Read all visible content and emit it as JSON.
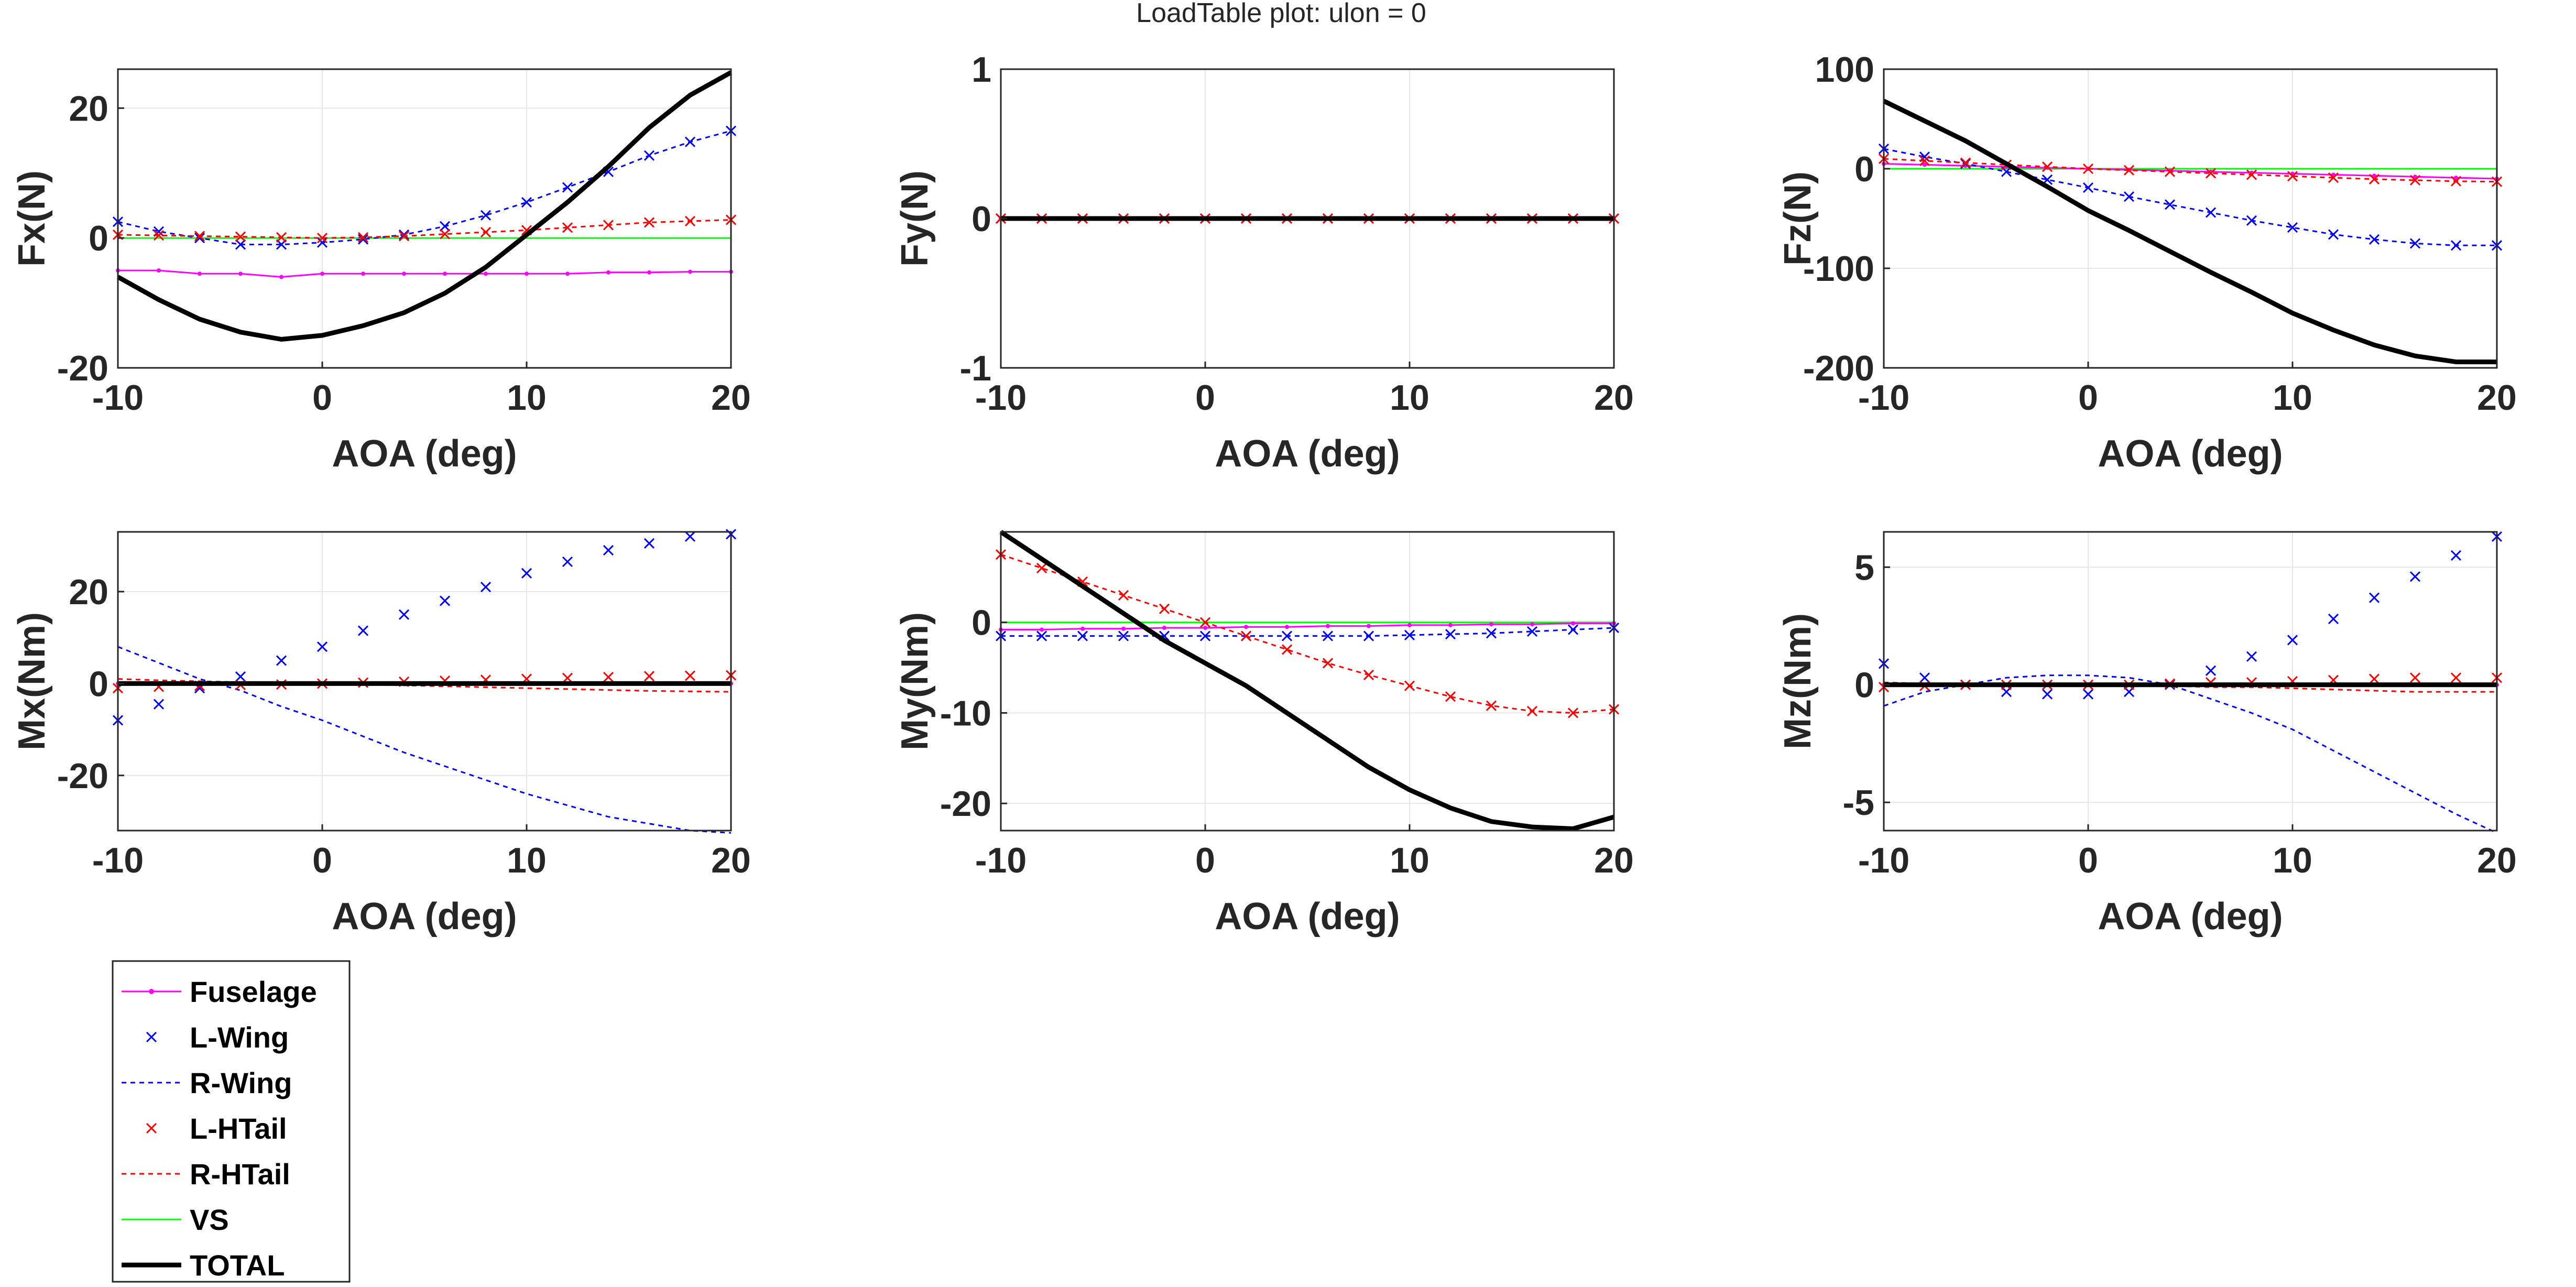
{
  "title": "LoadTable plot: ulon = 0",
  "colors": {
    "Fuselage": "#ff00ff",
    "L-Wing": "#0000ff",
    "R-Wing": "#0000ff",
    "L-HTail": "#ff0000",
    "R-HTail": "#ff0000",
    "VS": "#00ff00",
    "TOTAL": "#000000",
    "axis": "#262626",
    "grid": "#e6e6e6"
  },
  "legend": {
    "placement": "below-left",
    "entries": [
      {
        "name": "Fuselage",
        "style": "line-dot"
      },
      {
        "name": "L-Wing",
        "style": "x-marker"
      },
      {
        "name": "R-Wing",
        "style": "dashed"
      },
      {
        "name": "L-HTail",
        "style": "x-marker"
      },
      {
        "name": "R-HTail",
        "style": "dashed"
      },
      {
        "name": "VS",
        "style": "solid-thin"
      },
      {
        "name": "TOTAL",
        "style": "solid-thick"
      }
    ]
  },
  "chart_data": [
    {
      "type": "line",
      "id": "fx",
      "grid": true,
      "xlabel": "AOA (deg)",
      "ylabel": "Fx(N)",
      "xlim": [
        -10,
        20
      ],
      "ylim": [
        -20,
        26
      ],
      "xticks": [
        -10,
        0,
        10,
        20
      ],
      "yticks": [
        -20,
        0,
        20
      ],
      "x": [
        -10,
        -8,
        -6,
        -4,
        -2,
        0,
        2,
        4,
        6,
        8,
        10,
        12,
        14,
        16,
        18,
        20
      ],
      "series": [
        {
          "name": "Fuselage",
          "values": [
            -5.0,
            -5.0,
            -5.5,
            -5.5,
            -6.0,
            -5.5,
            -5.5,
            -5.5,
            -5.5,
            -5.5,
            -5.5,
            -5.5,
            -5.3,
            -5.3,
            -5.2,
            -5.2
          ]
        },
        {
          "name": "L-Wing",
          "values": [
            2.5,
            1.0,
            0,
            -1.0,
            -1.0,
            -0.7,
            -0.2,
            0.5,
            1.8,
            3.5,
            5.5,
            7.8,
            10.2,
            12.7,
            14.8,
            16.5
          ]
        },
        {
          "name": "R-Wing",
          "values": [
            2.5,
            1.0,
            0,
            -1.0,
            -1.0,
            -0.7,
            -0.2,
            0.5,
            1.8,
            3.5,
            5.5,
            7.8,
            10.2,
            12.7,
            14.8,
            16.5
          ]
        },
        {
          "name": "L-HTail",
          "values": [
            0.5,
            0.4,
            0.3,
            0.2,
            0.1,
            0,
            0.1,
            0.3,
            0.6,
            0.9,
            1.2,
            1.6,
            2.0,
            2.4,
            2.6,
            2.8
          ]
        },
        {
          "name": "R-HTail",
          "values": [
            0.5,
            0.4,
            0.3,
            0.2,
            0.1,
            0,
            0.1,
            0.3,
            0.6,
            0.9,
            1.2,
            1.6,
            2.0,
            2.4,
            2.6,
            2.8
          ]
        },
        {
          "name": "VS",
          "values": [
            0,
            0,
            0,
            0,
            0,
            0,
            0,
            0,
            0,
            0,
            0,
            0,
            0,
            0,
            0,
            0
          ]
        },
        {
          "name": "TOTAL",
          "values": [
            -6.0,
            -9.5,
            -12.5,
            -14.5,
            -15.6,
            -15.0,
            -13.5,
            -11.5,
            -8.5,
            -4.5,
            0.5,
            5.5,
            11.0,
            17.0,
            22.0,
            25.5
          ]
        }
      ]
    },
    {
      "type": "line",
      "id": "fy",
      "grid": true,
      "xlabel": "AOA (deg)",
      "ylabel": "Fy(N)",
      "xlim": [
        -10,
        20
      ],
      "ylim": [
        -1,
        1
      ],
      "xticks": [
        -10,
        0,
        10,
        20
      ],
      "yticks": [
        -1,
        0,
        1
      ],
      "x": [
        -10,
        -8,
        -6,
        -4,
        -2,
        0,
        2,
        4,
        6,
        8,
        10,
        12,
        14,
        16,
        18,
        20
      ],
      "series": [
        {
          "name": "Fuselage",
          "values": [
            0,
            0,
            0,
            0,
            0,
            0,
            0,
            0,
            0,
            0,
            0,
            0,
            0,
            0,
            0,
            0
          ]
        },
        {
          "name": "L-Wing",
          "values": [
            0,
            0,
            0,
            0,
            0,
            0,
            0,
            0,
            0,
            0,
            0,
            0,
            0,
            0,
            0,
            0
          ]
        },
        {
          "name": "R-Wing",
          "values": [
            0,
            0,
            0,
            0,
            0,
            0,
            0,
            0,
            0,
            0,
            0,
            0,
            0,
            0,
            0,
            0
          ]
        },
        {
          "name": "L-HTail",
          "values": [
            0,
            0,
            0,
            0,
            0,
            0,
            0,
            0,
            0,
            0,
            0,
            0,
            0,
            0,
            0,
            0
          ]
        },
        {
          "name": "R-HTail",
          "values": [
            0,
            0,
            0,
            0,
            0,
            0,
            0,
            0,
            0,
            0,
            0,
            0,
            0,
            0,
            0,
            0
          ]
        },
        {
          "name": "VS",
          "values": [
            0,
            0,
            0,
            0,
            0,
            0,
            0,
            0,
            0,
            0,
            0,
            0,
            0,
            0,
            0,
            0
          ]
        },
        {
          "name": "TOTAL",
          "values": [
            0,
            0,
            0,
            0,
            0,
            0,
            0,
            0,
            0,
            0,
            0,
            0,
            0,
            0,
            0,
            0
          ]
        }
      ]
    },
    {
      "type": "line",
      "id": "fz",
      "grid": true,
      "xlabel": "AOA (deg)",
      "ylabel": "Fz(N)",
      "xlim": [
        -10,
        20
      ],
      "ylim": [
        -200,
        100
      ],
      "xticks": [
        -10,
        0,
        10,
        20
      ],
      "yticks": [
        -200,
        -100,
        0,
        100
      ],
      "x": [
        -10,
        -8,
        -6,
        -4,
        -2,
        0,
        2,
        4,
        6,
        8,
        10,
        12,
        14,
        16,
        18,
        20
      ],
      "series": [
        {
          "name": "Fuselage",
          "values": [
            5,
            4,
            3,
            2,
            1,
            0,
            -1,
            -2,
            -3,
            -4,
            -5,
            -6,
            -7,
            -8,
            -9,
            -10
          ]
        },
        {
          "name": "L-Wing",
          "values": [
            20,
            12,
            5,
            -3,
            -11,
            -19,
            -28,
            -36,
            -44,
            -52,
            -59,
            -66,
            -71,
            -75,
            -77,
            -77
          ]
        },
        {
          "name": "R-Wing",
          "values": [
            20,
            12,
            5,
            -3,
            -11,
            -19,
            -28,
            -36,
            -44,
            -52,
            -59,
            -66,
            -71,
            -75,
            -77,
            -77
          ]
        },
        {
          "name": "L-HTail",
          "values": [
            10,
            8,
            6,
            4,
            2,
            0,
            -1.5,
            -3,
            -4.5,
            -6,
            -7.5,
            -9,
            -10.5,
            -11.5,
            -12.5,
            -13
          ]
        },
        {
          "name": "R-HTail",
          "values": [
            10,
            8,
            6,
            4,
            2,
            0,
            -1.5,
            -3,
            -4.5,
            -6,
            -7.5,
            -9,
            -10.5,
            -11.5,
            -12.5,
            -13
          ]
        },
        {
          "name": "VS",
          "values": [
            0,
            0,
            0,
            0,
            0,
            0,
            0,
            0,
            0,
            0,
            0,
            0,
            0,
            0,
            0,
            0
          ]
        },
        {
          "name": "TOTAL",
          "values": [
            68,
            48,
            28,
            5,
            -18,
            -42,
            -62,
            -83,
            -104,
            -124,
            -145,
            -162,
            -177,
            -188,
            -194,
            -194
          ]
        }
      ]
    },
    {
      "type": "line",
      "id": "mx",
      "grid": true,
      "xlabel": "AOA (deg)",
      "ylabel": "Mx(Nm)",
      "xlim": [
        -10,
        20
      ],
      "ylim": [
        -32,
        33
      ],
      "xticks": [
        -10,
        0,
        10,
        20
      ],
      "yticks": [
        -20,
        0,
        20
      ],
      "x": [
        -10,
        -8,
        -6,
        -4,
        -2,
        0,
        2,
        4,
        6,
        8,
        10,
        12,
        14,
        16,
        18,
        20
      ],
      "series": [
        {
          "name": "Fuselage",
          "values": [
            0,
            0,
            0,
            0,
            0,
            0,
            0,
            0,
            0,
            0,
            0,
            0,
            0,
            0,
            0,
            0
          ]
        },
        {
          "name": "L-Wing",
          "values": [
            -8,
            -4.5,
            -1,
            1.5,
            5,
            8,
            11.5,
            15,
            18,
            21,
            24,
            26.5,
            29,
            30.5,
            32,
            32.5
          ]
        },
        {
          "name": "R-Wing",
          "values": [
            8,
            4.5,
            1,
            -1.5,
            -5,
            -8,
            -11.5,
            -15,
            -18,
            -21,
            -24,
            -26.5,
            -29,
            -30.5,
            -32,
            -32.5
          ]
        },
        {
          "name": "L-HTail",
          "values": [
            -1,
            -0.7,
            -0.5,
            -0.3,
            -0.2,
            0,
            0.2,
            0.4,
            0.6,
            0.8,
            1.0,
            1.2,
            1.4,
            1.6,
            1.7,
            1.8
          ]
        },
        {
          "name": "R-HTail",
          "values": [
            1,
            0.7,
            0.5,
            0.3,
            0.2,
            0,
            -0.2,
            -0.4,
            -0.6,
            -0.8,
            -1.0,
            -1.2,
            -1.4,
            -1.6,
            -1.7,
            -1.8
          ]
        },
        {
          "name": "VS",
          "values": [
            0,
            0,
            0,
            0,
            0,
            0,
            0,
            0,
            0,
            0,
            0,
            0,
            0,
            0,
            0,
            0
          ]
        },
        {
          "name": "TOTAL",
          "values": [
            0,
            0,
            0,
            0,
            0,
            0,
            0,
            0,
            0,
            0,
            0,
            0,
            0,
            0,
            0,
            0
          ]
        }
      ]
    },
    {
      "type": "line",
      "id": "my",
      "grid": true,
      "xlabel": "AOA (deg)",
      "ylabel": "My(Nm)",
      "xlim": [
        -10,
        20
      ],
      "ylim": [
        -23,
        10
      ],
      "xticks": [
        -10,
        0,
        10,
        20
      ],
      "yticks": [
        -20,
        -10,
        0
      ],
      "x": [
        -10,
        -8,
        -6,
        -4,
        -2,
        0,
        2,
        4,
        6,
        8,
        10,
        12,
        14,
        16,
        18,
        20
      ],
      "series": [
        {
          "name": "Fuselage",
          "values": [
            -0.8,
            -0.8,
            -0.7,
            -0.7,
            -0.6,
            -0.6,
            -0.5,
            -0.5,
            -0.4,
            -0.4,
            -0.3,
            -0.3,
            -0.2,
            -0.2,
            -0.1,
            -0.1
          ]
        },
        {
          "name": "L-Wing",
          "values": [
            -1.5,
            -1.5,
            -1.5,
            -1.5,
            -1.5,
            -1.5,
            -1.5,
            -1.5,
            -1.5,
            -1.5,
            -1.4,
            -1.3,
            -1.2,
            -1.0,
            -0.8,
            -0.6
          ]
        },
        {
          "name": "R-Wing",
          "values": [
            -1.5,
            -1.5,
            -1.5,
            -1.5,
            -1.5,
            -1.5,
            -1.5,
            -1.5,
            -1.5,
            -1.5,
            -1.4,
            -1.3,
            -1.2,
            -1.0,
            -0.8,
            -0.6
          ]
        },
        {
          "name": "L-HTail",
          "values": [
            7.5,
            6,
            4.5,
            3,
            1.5,
            0,
            -1.5,
            -3,
            -4.5,
            -5.8,
            -7,
            -8.2,
            -9.2,
            -9.8,
            -10.0,
            -9.6
          ]
        },
        {
          "name": "R-HTail",
          "values": [
            7.5,
            6,
            4.5,
            3,
            1.5,
            0,
            -1.5,
            -3,
            -4.5,
            -5.8,
            -7,
            -8.2,
            -9.2,
            -9.8,
            -10.0,
            -9.6
          ]
        },
        {
          "name": "VS",
          "values": [
            0,
            0,
            0,
            0,
            0,
            0,
            0,
            0,
            0,
            0,
            0,
            0,
            0,
            0,
            0,
            0
          ]
        },
        {
          "name": "TOTAL",
          "values": [
            10,
            7,
            4,
            1,
            -2,
            -4.5,
            -7,
            -10,
            -13,
            -16,
            -18.5,
            -20.5,
            -22,
            -22.6,
            -22.8,
            -21.5
          ]
        }
      ]
    },
    {
      "type": "line",
      "id": "mz",
      "grid": true,
      "xlabel": "AOA (deg)",
      "ylabel": "Mz(Nm)",
      "xlim": [
        -10,
        20
      ],
      "ylim": [
        -6.2,
        6.5
      ],
      "xticks": [
        -10,
        0,
        10,
        20
      ],
      "yticks": [
        -5,
        0,
        5
      ],
      "x": [
        -10,
        -8,
        -6,
        -4,
        -2,
        0,
        2,
        4,
        6,
        8,
        10,
        12,
        14,
        16,
        18,
        20
      ],
      "series": [
        {
          "name": "Fuselage",
          "values": [
            0,
            0,
            0,
            0,
            0,
            0,
            0,
            0,
            0,
            0,
            0,
            0,
            0,
            0,
            0,
            0
          ]
        },
        {
          "name": "L-Wing",
          "values": [
            0.9,
            0.3,
            0,
            -0.3,
            -0.4,
            -0.4,
            -0.3,
            0,
            0.6,
            1.2,
            1.9,
            2.8,
            3.7,
            4.6,
            5.5,
            6.3
          ]
        },
        {
          "name": "R-Wing",
          "values": [
            -0.9,
            -0.3,
            0,
            0.3,
            0.4,
            0.4,
            0.3,
            0,
            -0.6,
            -1.2,
            -1.9,
            -2.8,
            -3.7,
            -4.6,
            -5.5,
            -6.3
          ]
        },
        {
          "name": "L-HTail",
          "values": [
            -0.1,
            -0.05,
            0,
            0,
            0,
            0,
            0,
            0.05,
            0.1,
            0.1,
            0.15,
            0.2,
            0.25,
            0.3,
            0.3,
            0.3
          ]
        },
        {
          "name": "R-HTail",
          "values": [
            0.1,
            0.05,
            0,
            0,
            0,
            0,
            0,
            -0.05,
            -0.1,
            -0.1,
            -0.15,
            -0.2,
            -0.25,
            -0.3,
            -0.3,
            -0.3
          ]
        },
        {
          "name": "VS",
          "values": [
            0,
            0,
            0,
            0,
            0,
            0,
            0,
            0,
            0,
            0,
            0,
            0,
            0,
            0,
            0,
            0
          ]
        },
        {
          "name": "TOTAL",
          "values": [
            0,
            0,
            0,
            0,
            0,
            0,
            0,
            0,
            0,
            0,
            0,
            0,
            0,
            0,
            0,
            0
          ]
        }
      ]
    }
  ]
}
